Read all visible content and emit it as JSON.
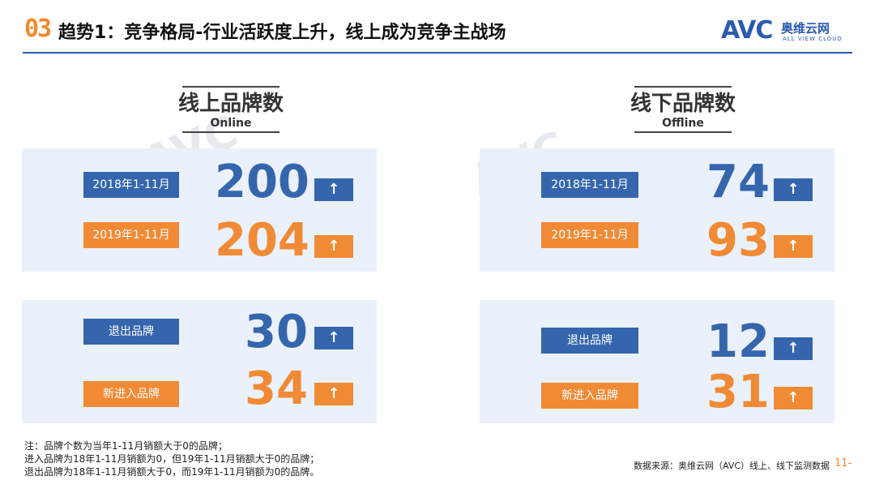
{
  "header": {
    "section_number": "03",
    "title": "趋势1：竞争格局-行业活跃度上升，线上成为竞争主战场",
    "logo_avc": "AVC",
    "logo_cn": "奥维云网",
    "logo_en": "ALL VIEW CLOUD"
  },
  "online": {
    "title_cn": "线上品牌数",
    "title_en": "Online",
    "rows": [
      {
        "label": "2018年1-11月",
        "value": "200",
        "arrow": "↑"
      },
      {
        "label": "2019年1-11月",
        "value": "204",
        "arrow": "↑"
      },
      {
        "label": "退出品牌",
        "value": "30",
        "arrow": "↑"
      },
      {
        "label": "新进入品牌",
        "value": "34",
        "arrow": "↑"
      }
    ]
  },
  "offline": {
    "title_cn": "线下品牌数",
    "title_en": "Offline",
    "rows": [
      {
        "label": "2018年1-11月",
        "value": "74",
        "arrow": "↑"
      },
      {
        "label": "2019年1-11月",
        "value": "93",
        "arrow": "↑"
      },
      {
        "label": "退出品牌",
        "value": "12",
        "arrow": "↑"
      },
      {
        "label": "新进入品牌",
        "value": "31",
        "arrow": "↑"
      }
    ]
  },
  "notes": [
    "注：品牌个数为当年1-11月销额大于0的品牌；",
    "进入品牌为18年1-11月销额为0，但19年1-11月销额大于0的品牌；",
    "退出品牌为18年1-11月销额大于0，而19年1-11月销额为0的品牌。"
  ],
  "source": "数据来源：奥维云网（AVC）线上、线下监测数据",
  "page_number": "11-",
  "colors": {
    "blue": "#3566ad",
    "orange": "#f08a35",
    "panel": "#eaf1fa"
  }
}
